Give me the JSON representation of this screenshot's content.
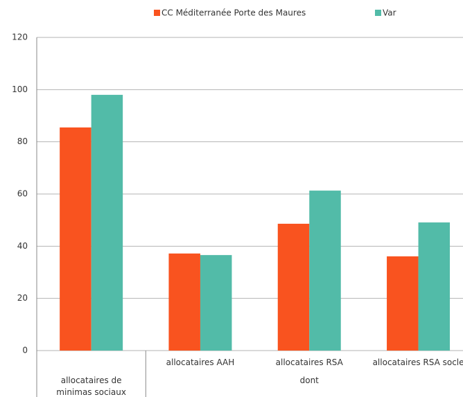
{
  "chart_data": {
    "type": "bar",
    "categories": [
      "allocataires de minimas sociaux",
      "allocataires AAH",
      "allocataires RSA",
      "allocataires RSA socle"
    ],
    "group_label": "dont",
    "series": [
      {
        "name": "CC Méditerranée Porte des Maures",
        "color": "#f9531f",
        "values": [
          85.5,
          37.2,
          48.6,
          36.1
        ]
      },
      {
        "name": "Var",
        "color": "#52bba8",
        "values": [
          98,
          36.6,
          61.3,
          49.1
        ]
      }
    ],
    "ylim": [
      0,
      120
    ],
    "yticks": [
      0,
      20,
      40,
      60,
      80,
      100,
      120
    ],
    "grid": true,
    "legend": "top"
  }
}
